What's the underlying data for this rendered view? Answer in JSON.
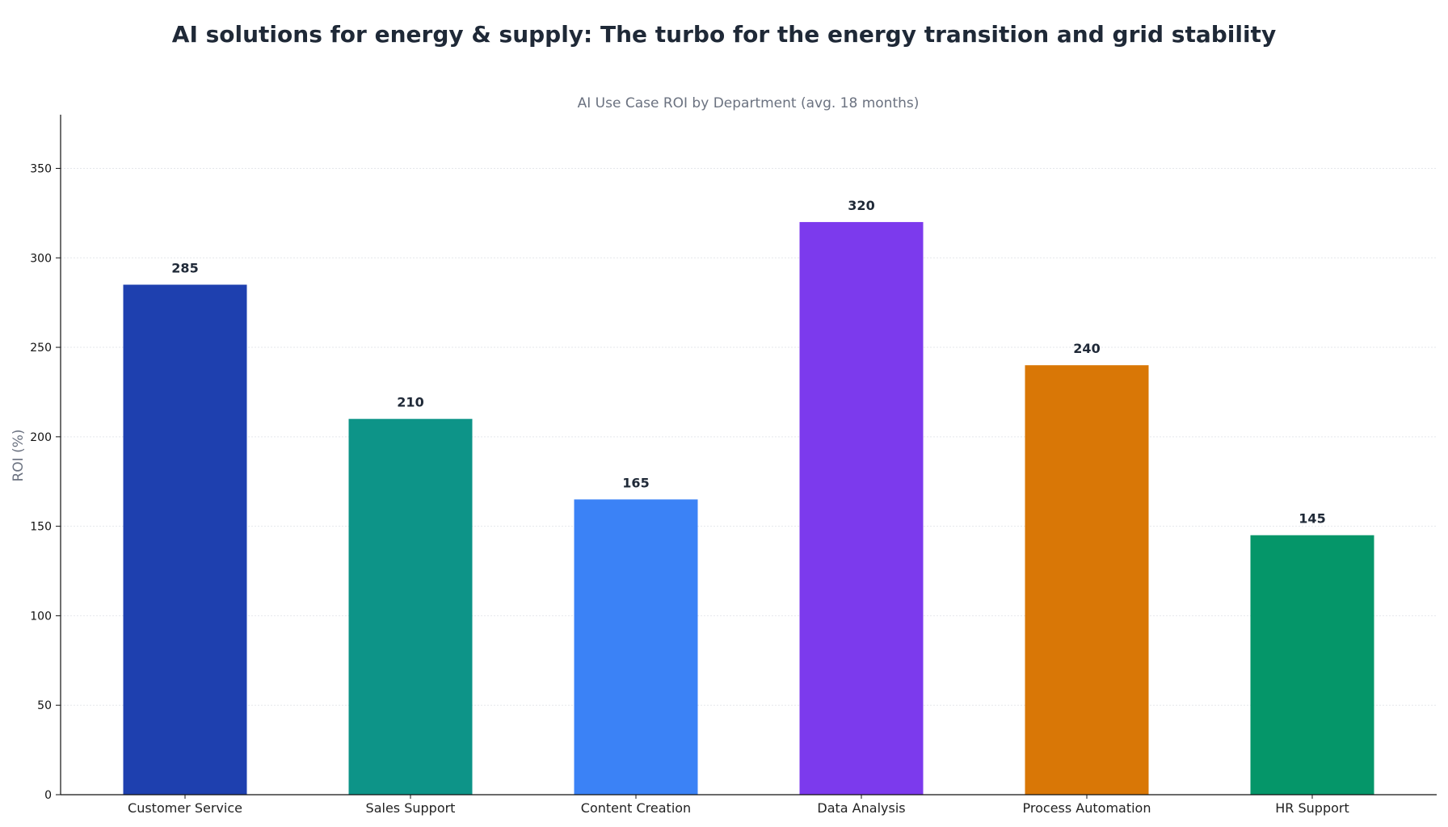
{
  "chart_data": {
    "type": "bar",
    "title": "AI solutions for energy & supply: The turbo for the energy transition and grid stability",
    "subtitle": "AI Use Case ROI by Department (avg. 18 months)",
    "xlabel": "",
    "ylabel": "ROI (%)",
    "categories": [
      "Customer Service",
      "Sales Support",
      "Content Creation",
      "Data Analysis",
      "Process Automation",
      "HR Support"
    ],
    "values": [
      285,
      210,
      165,
      320,
      240,
      145
    ],
    "colors": [
      "#1e40af",
      "#0d9488",
      "#3b82f6",
      "#7c3aed",
      "#d97706",
      "#059669"
    ],
    "ylim": [
      0,
      380
    ],
    "yticks": [
      0,
      50,
      100,
      150,
      200,
      250,
      300,
      350
    ],
    "grid": true,
    "legend": "none"
  }
}
